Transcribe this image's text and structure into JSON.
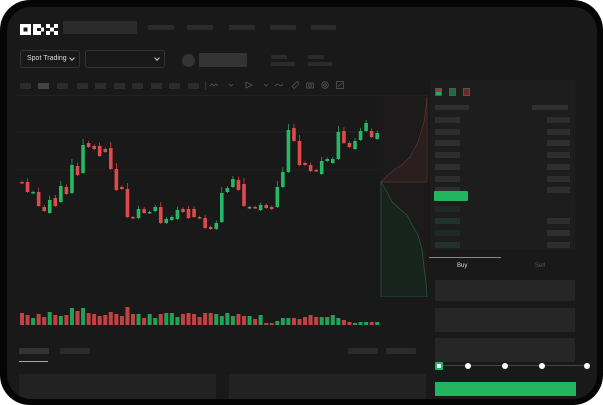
{
  "header": {
    "logo": "OKX"
  },
  "market_selector": {
    "label": "Spot Trading",
    "pair_value": ""
  },
  "trade_tabs": [
    {
      "label": "Buy",
      "active": true
    },
    {
      "label": "Sell",
      "active": false
    }
  ],
  "order_slider": {
    "percent": 0,
    "stops": [
      0,
      25,
      50,
      75,
      100
    ]
  },
  "colors": {
    "up": "#27b865",
    "down": "#df4a4a",
    "background": "#191919",
    "accent_button": "#22b45e"
  },
  "icons": [
    "chevron-down-icon",
    "indicator-icon",
    "draw-line-icon",
    "ruler-icon",
    "camera-icon",
    "settings-icon",
    "fullscreen-icon",
    "orderbook-both-icon",
    "orderbook-bids-icon",
    "orderbook-asks-icon"
  ],
  "chart_data": {
    "type": "candlestick",
    "candles": [
      [
        118,
        117
      ],
      [
        118,
        108
      ],
      [
        107,
        108
      ],
      [
        108,
        94
      ],
      [
        93,
        89
      ],
      [
        87,
        100
      ],
      [
        102,
        94
      ],
      [
        98,
        114
      ],
      [
        113,
        106
      ],
      [
        107,
        135
      ],
      [
        134,
        125
      ],
      [
        127,
        155
      ],
      [
        157,
        153
      ],
      [
        154,
        151
      ],
      [
        154,
        144
      ],
      [
        151,
        148
      ],
      [
        152,
        131
      ],
      [
        131,
        110
      ],
      [
        113,
        111
      ],
      [
        111,
        83
      ],
      [
        83,
        82
      ],
      [
        82,
        91
      ],
      [
        91,
        87
      ],
      [
        87,
        88
      ],
      [
        89,
        93
      ],
      [
        93,
        77
      ],
      [
        77,
        81
      ],
      [
        80,
        83
      ],
      [
        81,
        90
      ],
      [
        91,
        88
      ],
      [
        91,
        82
      ],
      [
        91,
        83
      ],
      [
        83,
        82
      ],
      [
        82,
        72
      ],
      [
        73,
        71
      ],
      [
        71,
        77
      ],
      [
        78,
        107
      ],
      [
        108,
        112
      ],
      [
        113,
        121
      ],
      [
        120,
        110
      ],
      [
        116,
        94
      ],
      [
        92,
        93
      ],
      [
        93,
        92
      ],
      [
        90,
        95
      ],
      [
        95,
        92
      ],
      [
        93,
        91
      ],
      [
        93,
        113
      ],
      [
        113,
        128
      ],
      [
        128,
        170
      ],
      [
        172,
        159
      ],
      [
        159,
        135
      ],
      [
        137,
        135
      ],
      [
        135,
        129
      ],
      [
        130,
        129
      ],
      [
        126,
        139
      ],
      [
        139,
        141
      ],
      [
        137,
        141
      ],
      [
        141,
        168
      ],
      [
        169,
        157
      ],
      [
        157,
        153
      ],
      [
        151,
        159
      ],
      [
        160,
        169
      ],
      [
        169,
        177
      ],
      [
        169,
        163
      ],
      [
        161,
        167
      ]
    ],
    "volume": [
      12,
      10,
      7,
      11,
      8,
      13,
      10,
      9,
      10,
      17,
      14,
      17,
      12,
      11,
      9,
      10,
      13,
      11,
      9,
      18,
      11,
      11,
      7,
      11,
      7,
      11,
      12,
      12,
      8,
      11,
      12,
      11,
      8,
      12,
      12,
      11,
      9,
      12,
      9,
      11,
      9,
      9,
      6,
      10,
      2,
      2,
      4,
      7,
      7,
      7,
      6,
      8,
      10,
      8,
      8,
      8,
      10,
      7,
      5,
      3,
      2,
      3,
      3,
      3,
      3
    ]
  }
}
